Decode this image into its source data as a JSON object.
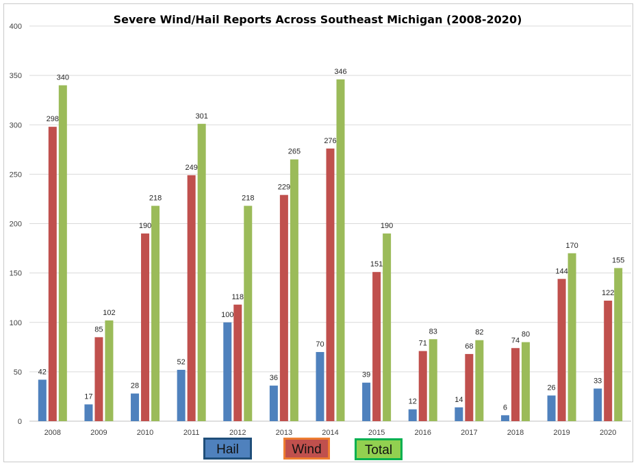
{
  "chart_data": {
    "type": "bar",
    "title": "Severe Wind/Hail Reports Across Southeast Michigan (2008-2020)",
    "categories": [
      "2008",
      "2009",
      "2010",
      "2011",
      "2012",
      "2013",
      "2014",
      "2015",
      "2016",
      "2017",
      "2018",
      "2019",
      "2020"
    ],
    "series": [
      {
        "name": "Hail",
        "color": "#4f81bd",
        "values": [
          42,
          17,
          28,
          52,
          100,
          36,
          70,
          39,
          12,
          14,
          6,
          26,
          33
        ]
      },
      {
        "name": "Wind",
        "color": "#c0504d",
        "values": [
          298,
          85,
          190,
          249,
          118,
          229,
          276,
          151,
          71,
          68,
          74,
          144,
          122
        ]
      },
      {
        "name": "Total",
        "color": "#9bbb59",
        "values": [
          340,
          102,
          218,
          301,
          218,
          265,
          346,
          190,
          83,
          82,
          80,
          170,
          155
        ]
      }
    ],
    "ylim": [
      0,
      400
    ],
    "yticks": [
      0,
      50,
      100,
      150,
      200,
      250,
      300,
      350,
      400
    ],
    "grid": true,
    "legend_position": "bottom",
    "legend_border_colors": [
      "#1f4e79",
      "#ed7d31",
      "#00b050"
    ],
    "xlabel": "",
    "ylabel": ""
  }
}
